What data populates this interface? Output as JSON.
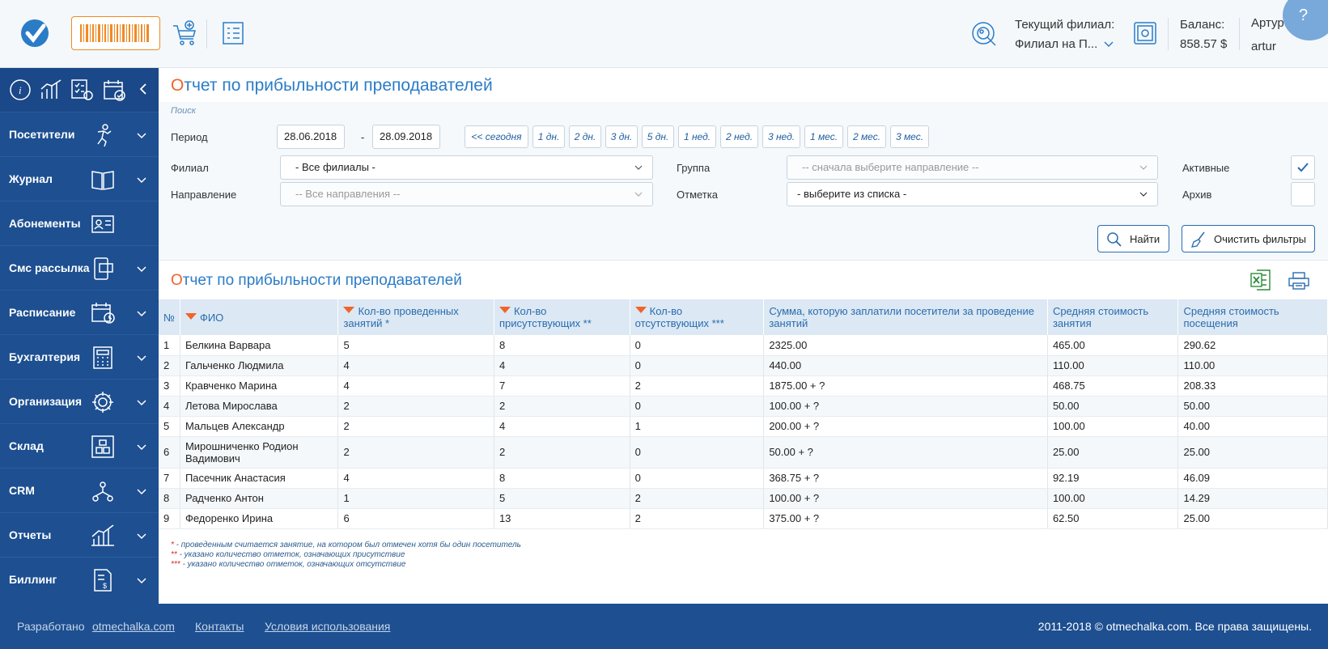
{
  "header": {
    "branch_label": "Текущий филиал:",
    "branch_value": "Филиал на П...",
    "balance_label": "Баланс:",
    "balance_value": "858.57 $",
    "user_name": "Артур А.",
    "user_login": "artur",
    "help": "?"
  },
  "sidebar": {
    "items": [
      {
        "label": "Посетители",
        "icon": "person-icon"
      },
      {
        "label": "Журнал",
        "icon": "book-icon"
      },
      {
        "label": "Абонементы",
        "icon": "id-card-icon"
      },
      {
        "label": "Смс рассылка",
        "icon": "phone-icon"
      },
      {
        "label": "Расписание",
        "icon": "calendar-clock-icon"
      },
      {
        "label": "Бухгалтерия",
        "icon": "calculator-icon"
      },
      {
        "label": "Организация",
        "icon": "gear-icon"
      },
      {
        "label": "Склад",
        "icon": "warehouse-icon"
      },
      {
        "label": "CRM",
        "icon": "network-icon"
      },
      {
        "label": "Отчеты",
        "icon": "chart-icon"
      },
      {
        "label": "Биллинг",
        "icon": "invoice-icon"
      }
    ]
  },
  "main": {
    "title_first": "О",
    "title_rest": "тчет по прибыльности преподавателей",
    "search_caption": "Поиск",
    "filters": {
      "period_label": "Период",
      "date_from": "28.06.2018",
      "date_to": "28.09.2018",
      "dash": "-",
      "quick": [
        "<< сегодня",
        "1 дн.",
        "2 дн.",
        "3 дн.",
        "5 дн.",
        "1 нед.",
        "2 нед.",
        "3 нед.",
        "1 мес.",
        "2 мес.",
        "3 мес."
      ],
      "branch_label": "Филиал",
      "branch_value": "- Все филиалы -",
      "direction_label": "Направление",
      "direction_value": "-- Все направления --",
      "group_label": "Группа",
      "group_value": "-- сначала выберите направление --",
      "mark_label": "Отметка",
      "mark_value": "- выберите из списка -",
      "active_label": "Активные",
      "active_checked": true,
      "archive_label": "Архив",
      "archive_checked": false,
      "find_label": "Найти",
      "clear_label": "Очистить фильтры"
    },
    "report_title_first": "О",
    "report_title_rest": "тчет по прибыльности преподавателей"
  },
  "table": {
    "headers": [
      "№",
      "ФИО",
      "Кол-во проведенных занятий *",
      "Кол-во присутствующих **",
      "Кол-во отсутствующих ***",
      "Сумма, которую заплатили посетители за проведение занятий",
      "Средняя стоимость занятия",
      "Средняя стоимость посещения"
    ],
    "rows": [
      [
        "1",
        "Белкина Варвара",
        "5",
        "8",
        "0",
        "2325.00",
        "465.00",
        "290.62"
      ],
      [
        "2",
        "Гальченко Людмила",
        "4",
        "4",
        "0",
        "440.00",
        "110.00",
        "110.00"
      ],
      [
        "3",
        "Кравченко Марина",
        "4",
        "7",
        "2",
        "1875.00 + ?",
        "468.75",
        "208.33"
      ],
      [
        "4",
        "Летова Мирослава",
        "2",
        "2",
        "0",
        "100.00 + ?",
        "50.00",
        "50.00"
      ],
      [
        "5",
        "Мальцев Александр",
        "2",
        "4",
        "1",
        "200.00 + ?",
        "100.00",
        "40.00"
      ],
      [
        "6",
        "Мирошниченко Родион Вадимович",
        "2",
        "2",
        "0",
        "50.00 + ?",
        "25.00",
        "25.00"
      ],
      [
        "7",
        "Пасечник Анастасия",
        "4",
        "8",
        "0",
        "368.75 + ?",
        "92.19",
        "46.09"
      ],
      [
        "8",
        "Радченко Антон",
        "1",
        "5",
        "2",
        "100.00 + ?",
        "100.00",
        "14.29"
      ],
      [
        "9",
        "Федоренко Ирина",
        "6",
        "13",
        "2",
        "375.00 + ?",
        "62.50",
        "25.00"
      ]
    ]
  },
  "notes": [
    {
      "star": "*",
      "text": " - проведенным считается занятие, на котором был отмечен хотя бы один посетитель"
    },
    {
      "star": "**",
      "text": " - указано количество отметок, означающих присутствие"
    },
    {
      "star": "***",
      "text": " - указано количество отметок, означающих отсутствие"
    }
  ],
  "footer": {
    "developed": "Разработано",
    "developed_link": "otmechalka.com",
    "contacts": "Контакты",
    "terms": "Условия использования",
    "copyright": "2011-2018 © otmechalka.com. Все права защищены."
  },
  "colors": {
    "accent": "#2a7cc7",
    "orange": "#f0642a",
    "sidebar": "#1d4f91"
  }
}
